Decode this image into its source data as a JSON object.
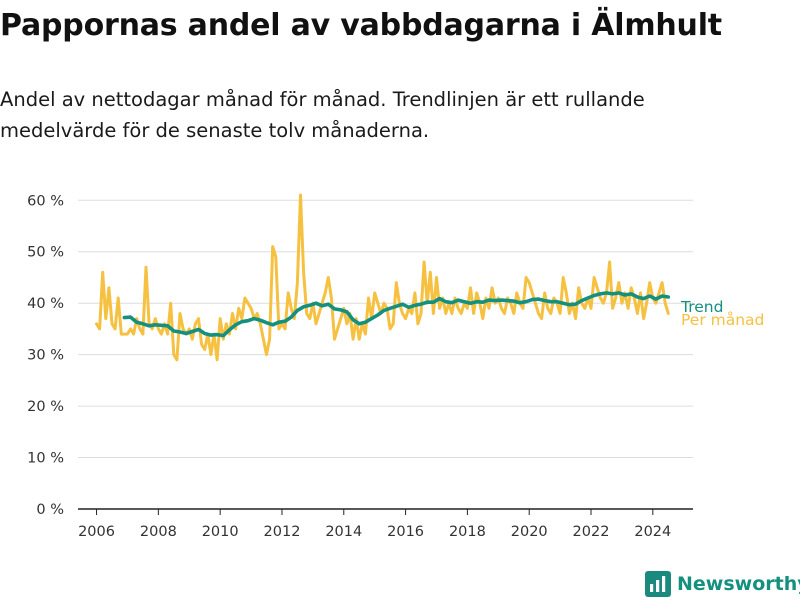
{
  "title": "Pappornas andel av vabbdagarna i Älmhult",
  "subtitle": "Andel av nettodagar månad för månad. Trendlinjen är ett rullande medelvärde för de senaste tolv månaderna.",
  "brand": {
    "name": "Newsworthy",
    "icon": "newsworthy-logo-icon",
    "color": "#1a8a7e"
  },
  "colors": {
    "monthly": "#f6c141",
    "trend": "#14907f",
    "grid": "#dddddd",
    "axis": "#222222"
  },
  "chart_data": {
    "type": "line",
    "title": "Pappornas andel av vabbdagarna i Älmhult",
    "xlim": [
      2005.4,
      2025.3
    ],
    "ylim": [
      0,
      62
    ],
    "x_ticks": [
      2006,
      2008,
      2010,
      2012,
      2014,
      2016,
      2018,
      2020,
      2022,
      2024
    ],
    "y_ticks": [
      0,
      10,
      20,
      30,
      40,
      50,
      60
    ],
    "y_tick_labels": [
      "0 %",
      "10 %",
      "20 %",
      "30 %",
      "40 %",
      "50 %",
      "60 %"
    ],
    "grid": "horizontal",
    "legend": "direct labels at right end of lines",
    "series": [
      {
        "name": "Per månad",
        "color": "#f6c141",
        "points": [
          [
            2006.0,
            36
          ],
          [
            2006.1,
            35
          ],
          [
            2006.2,
            46
          ],
          [
            2006.3,
            37
          ],
          [
            2006.4,
            43
          ],
          [
            2006.5,
            36
          ],
          [
            2006.6,
            35
          ],
          [
            2006.7,
            41
          ],
          [
            2006.8,
            34
          ],
          [
            2006.9,
            34
          ],
          [
            2007.0,
            34
          ],
          [
            2007.1,
            35
          ],
          [
            2007.2,
            34
          ],
          [
            2007.3,
            37
          ],
          [
            2007.4,
            35
          ],
          [
            2007.5,
            34
          ],
          [
            2007.6,
            47
          ],
          [
            2007.7,
            36
          ],
          [
            2007.8,
            35
          ],
          [
            2007.9,
            37
          ],
          [
            2008.0,
            35
          ],
          [
            2008.1,
            34
          ],
          [
            2008.2,
            36
          ],
          [
            2008.3,
            34
          ],
          [
            2008.4,
            40
          ],
          [
            2008.5,
            30
          ],
          [
            2008.6,
            29
          ],
          [
            2008.7,
            38
          ],
          [
            2008.8,
            35
          ],
          [
            2008.9,
            34
          ],
          [
            2009.0,
            35
          ],
          [
            2009.1,
            33
          ],
          [
            2009.2,
            36
          ],
          [
            2009.3,
            37
          ],
          [
            2009.4,
            32
          ],
          [
            2009.5,
            31
          ],
          [
            2009.6,
            34
          ],
          [
            2009.7,
            30
          ],
          [
            2009.8,
            34
          ],
          [
            2009.9,
            29
          ],
          [
            2010.0,
            37
          ],
          [
            2010.1,
            33
          ],
          [
            2010.2,
            36
          ],
          [
            2010.3,
            34
          ],
          [
            2010.4,
            38
          ],
          [
            2010.5,
            35
          ],
          [
            2010.6,
            39
          ],
          [
            2010.7,
            37
          ],
          [
            2010.8,
            41
          ],
          [
            2010.9,
            40
          ],
          [
            2011.0,
            39
          ],
          [
            2011.1,
            37
          ],
          [
            2011.2,
            38
          ],
          [
            2011.3,
            36
          ],
          [
            2011.4,
            33
          ],
          [
            2011.5,
            30
          ],
          [
            2011.6,
            33
          ],
          [
            2011.7,
            51
          ],
          [
            2011.8,
            49
          ],
          [
            2011.9,
            35
          ],
          [
            2012.0,
            36
          ],
          [
            2012.1,
            35
          ],
          [
            2012.2,
            42
          ],
          [
            2012.3,
            39
          ],
          [
            2012.4,
            37
          ],
          [
            2012.5,
            44
          ],
          [
            2012.6,
            61
          ],
          [
            2012.7,
            46
          ],
          [
            2012.8,
            38
          ],
          [
            2012.9,
            37
          ],
          [
            2013.0,
            40
          ],
          [
            2013.1,
            36
          ],
          [
            2013.2,
            38
          ],
          [
            2013.3,
            40
          ],
          [
            2013.4,
            42
          ],
          [
            2013.5,
            45
          ],
          [
            2013.6,
            41
          ],
          [
            2013.7,
            33
          ],
          [
            2013.8,
            35
          ],
          [
            2013.9,
            37
          ],
          [
            2014.0,
            39
          ],
          [
            2014.1,
            36
          ],
          [
            2014.2,
            38
          ],
          [
            2014.3,
            33
          ],
          [
            2014.4,
            37
          ],
          [
            2014.5,
            33
          ],
          [
            2014.6,
            36
          ],
          [
            2014.7,
            34
          ],
          [
            2014.8,
            41
          ],
          [
            2014.9,
            37
          ],
          [
            2015.0,
            42
          ],
          [
            2015.1,
            40
          ],
          [
            2015.2,
            38
          ],
          [
            2015.3,
            40
          ],
          [
            2015.4,
            39
          ],
          [
            2015.5,
            35
          ],
          [
            2015.6,
            36
          ],
          [
            2015.7,
            44
          ],
          [
            2015.8,
            40
          ],
          [
            2015.9,
            38
          ],
          [
            2016.0,
            37
          ],
          [
            2016.1,
            39
          ],
          [
            2016.2,
            38
          ],
          [
            2016.3,
            42
          ],
          [
            2016.4,
            36
          ],
          [
            2016.5,
            38
          ],
          [
            2016.6,
            48
          ],
          [
            2016.7,
            40
          ],
          [
            2016.8,
            46
          ],
          [
            2016.9,
            38
          ],
          [
            2017.0,
            45
          ],
          [
            2017.1,
            39
          ],
          [
            2017.2,
            41
          ],
          [
            2017.3,
            38
          ],
          [
            2017.4,
            40
          ],
          [
            2017.5,
            38
          ],
          [
            2017.6,
            41
          ],
          [
            2017.7,
            39
          ],
          [
            2017.8,
            38
          ],
          [
            2017.9,
            40
          ],
          [
            2018.0,
            39
          ],
          [
            2018.1,
            43
          ],
          [
            2018.2,
            38
          ],
          [
            2018.3,
            42
          ],
          [
            2018.4,
            40
          ],
          [
            2018.5,
            37
          ],
          [
            2018.6,
            41
          ],
          [
            2018.7,
            39
          ],
          [
            2018.8,
            43
          ],
          [
            2018.9,
            40
          ],
          [
            2019.0,
            41
          ],
          [
            2019.1,
            39
          ],
          [
            2019.2,
            38
          ],
          [
            2019.3,
            41
          ],
          [
            2019.4,
            40
          ],
          [
            2019.5,
            38
          ],
          [
            2019.6,
            42
          ],
          [
            2019.7,
            40
          ],
          [
            2019.8,
            39
          ],
          [
            2019.9,
            45
          ],
          [
            2020.0,
            44
          ],
          [
            2020.1,
            42
          ],
          [
            2020.2,
            40
          ],
          [
            2020.3,
            38
          ],
          [
            2020.4,
            37
          ],
          [
            2020.5,
            42
          ],
          [
            2020.6,
            39
          ],
          [
            2020.7,
            38
          ],
          [
            2020.8,
            41
          ],
          [
            2020.9,
            40
          ],
          [
            2021.0,
            38
          ],
          [
            2021.1,
            45
          ],
          [
            2021.2,
            42
          ],
          [
            2021.3,
            38
          ],
          [
            2021.4,
            40
          ],
          [
            2021.5,
            37
          ],
          [
            2021.6,
            43
          ],
          [
            2021.7,
            40
          ],
          [
            2021.8,
            39
          ],
          [
            2021.9,
            41
          ],
          [
            2022.0,
            39
          ],
          [
            2022.1,
            45
          ],
          [
            2022.2,
            43
          ],
          [
            2022.3,
            41
          ],
          [
            2022.4,
            40
          ],
          [
            2022.5,
            42
          ],
          [
            2022.6,
            48
          ],
          [
            2022.7,
            39
          ],
          [
            2022.8,
            41
          ],
          [
            2022.9,
            44
          ],
          [
            2023.0,
            40
          ],
          [
            2023.1,
            42
          ],
          [
            2023.2,
            39
          ],
          [
            2023.3,
            43
          ],
          [
            2023.4,
            41
          ],
          [
            2023.5,
            38
          ],
          [
            2023.6,
            42
          ],
          [
            2023.7,
            37
          ],
          [
            2023.8,
            40
          ],
          [
            2023.9,
            44
          ],
          [
            2024.0,
            41
          ],
          [
            2024.1,
            40
          ],
          [
            2024.2,
            42
          ],
          [
            2024.3,
            44
          ],
          [
            2024.4,
            40
          ],
          [
            2024.5,
            38
          ]
        ]
      },
      {
        "name": "Trend",
        "color": "#14907f",
        "points": [
          [
            2006.9,
            37.2
          ],
          [
            2007.1,
            37.3
          ],
          [
            2007.3,
            36.3
          ],
          [
            2007.5,
            36.0
          ],
          [
            2007.7,
            35.6
          ],
          [
            2007.9,
            35.8
          ],
          [
            2008.1,
            35.7
          ],
          [
            2008.3,
            35.6
          ],
          [
            2008.5,
            34.6
          ],
          [
            2008.7,
            34.4
          ],
          [
            2008.9,
            34.1
          ],
          [
            2009.1,
            34.5
          ],
          [
            2009.3,
            34.9
          ],
          [
            2009.5,
            34.1
          ],
          [
            2009.7,
            33.8
          ],
          [
            2009.9,
            33.9
          ],
          [
            2010.1,
            33.7
          ],
          [
            2010.3,
            34.8
          ],
          [
            2010.5,
            35.8
          ],
          [
            2010.7,
            36.4
          ],
          [
            2010.9,
            36.6
          ],
          [
            2011.1,
            37.0
          ],
          [
            2011.3,
            36.7
          ],
          [
            2011.5,
            36.2
          ],
          [
            2011.7,
            35.8
          ],
          [
            2011.9,
            36.3
          ],
          [
            2012.1,
            36.5
          ],
          [
            2012.3,
            37.3
          ],
          [
            2012.5,
            38.6
          ],
          [
            2012.7,
            39.3
          ],
          [
            2012.9,
            39.6
          ],
          [
            2013.1,
            40.0
          ],
          [
            2013.3,
            39.5
          ],
          [
            2013.5,
            39.8
          ],
          [
            2013.7,
            38.9
          ],
          [
            2013.9,
            38.7
          ],
          [
            2014.1,
            38.3
          ],
          [
            2014.3,
            36.8
          ],
          [
            2014.5,
            36.0
          ],
          [
            2014.7,
            36.3
          ],
          [
            2014.9,
            37.0
          ],
          [
            2015.1,
            37.7
          ],
          [
            2015.3,
            38.6
          ],
          [
            2015.5,
            39.0
          ],
          [
            2015.7,
            39.4
          ],
          [
            2015.9,
            39.8
          ],
          [
            2016.1,
            39.2
          ],
          [
            2016.3,
            39.6
          ],
          [
            2016.5,
            39.8
          ],
          [
            2016.7,
            40.2
          ],
          [
            2016.9,
            40.2
          ],
          [
            2017.1,
            40.9
          ],
          [
            2017.3,
            40.3
          ],
          [
            2017.5,
            40.1
          ],
          [
            2017.7,
            40.6
          ],
          [
            2017.9,
            40.3
          ],
          [
            2018.1,
            40.0
          ],
          [
            2018.3,
            40.3
          ],
          [
            2018.5,
            40.2
          ],
          [
            2018.7,
            40.6
          ],
          [
            2018.9,
            40.5
          ],
          [
            2019.1,
            40.6
          ],
          [
            2019.3,
            40.5
          ],
          [
            2019.5,
            40.4
          ],
          [
            2019.7,
            40.1
          ],
          [
            2019.9,
            40.3
          ],
          [
            2020.1,
            40.7
          ],
          [
            2020.3,
            40.8
          ],
          [
            2020.5,
            40.5
          ],
          [
            2020.7,
            40.3
          ],
          [
            2020.9,
            40.3
          ],
          [
            2021.1,
            40.0
          ],
          [
            2021.3,
            39.7
          ],
          [
            2021.5,
            39.8
          ],
          [
            2021.7,
            40.5
          ],
          [
            2021.9,
            41.0
          ],
          [
            2022.1,
            41.5
          ],
          [
            2022.3,
            41.8
          ],
          [
            2022.5,
            42.0
          ],
          [
            2022.7,
            41.8
          ],
          [
            2022.9,
            42.0
          ],
          [
            2023.1,
            41.6
          ],
          [
            2023.3,
            41.8
          ],
          [
            2023.5,
            41.2
          ],
          [
            2023.7,
            40.9
          ],
          [
            2023.9,
            41.4
          ],
          [
            2024.1,
            40.8
          ],
          [
            2024.3,
            41.4
          ],
          [
            2024.5,
            41.2
          ]
        ]
      }
    ]
  }
}
